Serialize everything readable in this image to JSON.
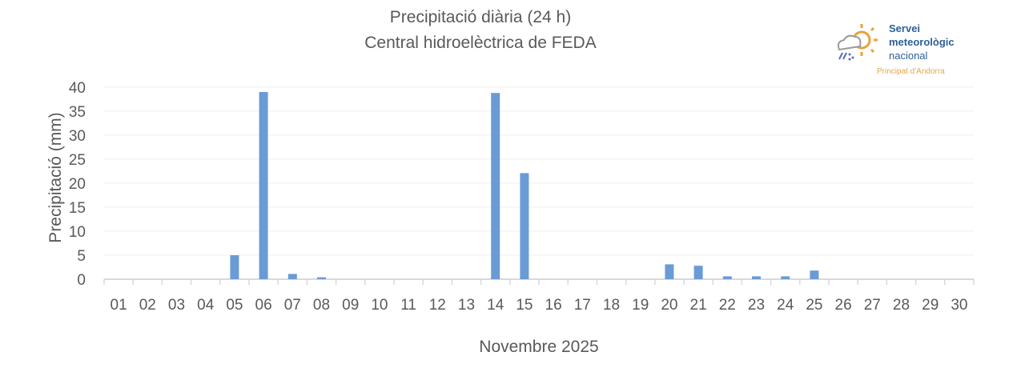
{
  "chart_data": {
    "type": "bar",
    "title": "Precipitació diària (24 h)",
    "subtitle": "Central hidroelèctrica de FEDA",
    "xlabel": "Novembre 2025",
    "ylabel": "Precipitació (mm)",
    "ylim": [
      0,
      40
    ],
    "yticks": [
      0,
      5,
      10,
      15,
      20,
      25,
      30,
      35,
      40
    ],
    "grid": true,
    "bar_color": "#6a9bd4",
    "categories": [
      "01",
      "02",
      "03",
      "04",
      "05",
      "06",
      "07",
      "08",
      "09",
      "10",
      "11",
      "12",
      "13",
      "14",
      "15",
      "16",
      "17",
      "18",
      "19",
      "20",
      "21",
      "22",
      "23",
      "24",
      "25",
      "26",
      "27",
      "28",
      "29",
      "30"
    ],
    "values": [
      0,
      0,
      0,
      0,
      5.0,
      39.0,
      1.1,
      0.4,
      0,
      0,
      0,
      0,
      0,
      38.8,
      22.1,
      0,
      0,
      0,
      0,
      3.1,
      2.8,
      0.6,
      0.6,
      0.6,
      1.8,
      0,
      0,
      0,
      0,
      0
    ]
  },
  "logo": {
    "line1": "Servei",
    "line2": "meteorològic",
    "line3": "nacional",
    "sub": "Principat d'Andorra"
  }
}
